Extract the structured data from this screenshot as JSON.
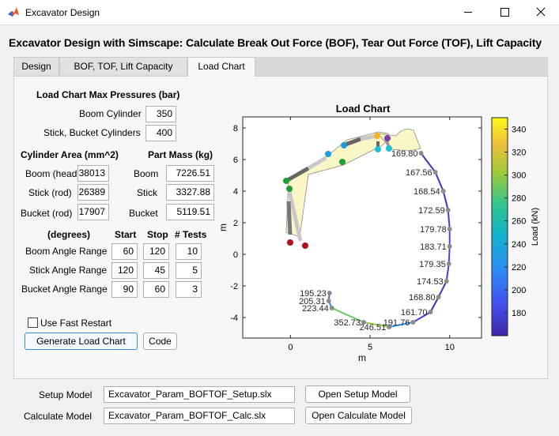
{
  "window": {
    "title": "Excavator Design"
  },
  "heading": "Excavator Design with Simscape: Calculate Break Out Force (BOF), Tear Out Force (TOF), Lift Capacity",
  "tabs": [
    {
      "label": "Design"
    },
    {
      "label": "BOF, TOF, Lift Capacity"
    },
    {
      "label": "Load Chart"
    }
  ],
  "max_pressures": {
    "title": "Load Chart Max Pressures (bar)",
    "boom_label": "Boom Cylinder",
    "boom_value": "350",
    "stick_label": "Stick, Bucket Cylinders",
    "stick_value": "400"
  },
  "cylinder_area": {
    "title": "Cylinder Area (mm^2)",
    "boom_label": "Boom (head)",
    "boom_value": "38013",
    "stick_label": "Stick  (rod)",
    "stick_value": "26389",
    "bucket_label": "Bucket  (rod)",
    "bucket_value": "17907"
  },
  "part_mass": {
    "title": "Part Mass (kg)",
    "boom_label": "Boom",
    "boom_value": "7226.51",
    "stick_label": "Stick",
    "stick_value": "3327.88",
    "bucket_label": "Bucket",
    "bucket_value": "5119.51"
  },
  "angles": {
    "units_label": "(degrees)",
    "start_label": "Start",
    "stop_label": "Stop",
    "tests_label": "# Tests",
    "rows": [
      {
        "label": "Boom Angle Range",
        "start": "60",
        "stop": "120",
        "tests": "10"
      },
      {
        "label": "Stick Angle Range",
        "start": "120",
        "stop": "45",
        "tests": "5"
      },
      {
        "label": "Bucket Angle Range",
        "start": "90",
        "stop": "60",
        "tests": "3"
      }
    ]
  },
  "fast_restart": {
    "label": "Use Fast Restart",
    "checked": false
  },
  "buttons": {
    "generate": "Generate Load Chart",
    "code": "Code",
    "open_setup": "Open Setup Model",
    "open_calc": "Open Calculate Model"
  },
  "models": {
    "setup_label": "Setup Model",
    "setup_value": "Excavator_Param_BOFTOF_Setup.slx",
    "calc_label": "Calculate Model",
    "calc_value": "Excavator_Param_BOFTOF_Calc.slx"
  },
  "icons": {
    "app": "matlab-icon",
    "minimize": "minimize-icon",
    "maximize": "maximize-icon",
    "close": "close-icon"
  },
  "colors": {
    "accent": "#3c8ce6",
    "arm_fill": "#fbf6c6"
  },
  "chart_data": {
    "type": "line",
    "title": "Load Chart",
    "xlabel": "m",
    "ylabel": "m",
    "xlim": [
      -3,
      12
    ],
    "ylim": [
      -5.3,
      8.7
    ],
    "xticks": [
      "0",
      "5",
      "10"
    ],
    "yticks": [
      "-4",
      "-2",
      "0",
      "2",
      "4",
      "6",
      "8"
    ],
    "colorbar": {
      "label": "Load (kN)",
      "range": [
        160,
        350
      ],
      "ticks": [
        "180",
        "200",
        "220",
        "240",
        "260",
        "280",
        "300",
        "320",
        "340"
      ]
    },
    "points": [
      {
        "x": 8.2,
        "y": 6.4,
        "load": 169.8,
        "label": "169.80"
      },
      {
        "x": 9.1,
        "y": 5.2,
        "load": 167.56,
        "label": "167.56"
      },
      {
        "x": 9.6,
        "y": 4.0,
        "load": 168.54,
        "label": "168.54"
      },
      {
        "x": 9.9,
        "y": 2.8,
        "load": 172.59,
        "label": "172.59"
      },
      {
        "x": 10.0,
        "y": 1.6,
        "load": 179.78,
        "label": "179.78"
      },
      {
        "x": 10.0,
        "y": 0.5,
        "load": 183.71,
        "label": "183.71"
      },
      {
        "x": 9.95,
        "y": -0.6,
        "load": 179.35,
        "label": "179.35"
      },
      {
        "x": 9.8,
        "y": -1.7,
        "load": 174.53,
        "label": "174.53"
      },
      {
        "x": 9.3,
        "y": -2.7,
        "load": 168.8,
        "label": "168.80"
      },
      {
        "x": 8.8,
        "y": -3.65,
        "load": 161.7,
        "label": "161.70"
      },
      {
        "x": 7.7,
        "y": -4.3,
        "load": 191.76,
        "label": "191.76"
      },
      {
        "x": 6.2,
        "y": -4.6,
        "load": 246.51,
        "label": "246.51"
      },
      {
        "x": 4.6,
        "y": -4.3,
        "load": 352.73,
        "label": "352.73"
      },
      {
        "x": 2.6,
        "y": -3.4,
        "load": 223.44,
        "label": "223.44"
      },
      {
        "x": 2.4,
        "y": -2.95,
        "load": 205.31,
        "label": "205.31"
      },
      {
        "x": 2.45,
        "y": -2.45,
        "load": 195.23,
        "label": "195.23"
      }
    ]
  }
}
